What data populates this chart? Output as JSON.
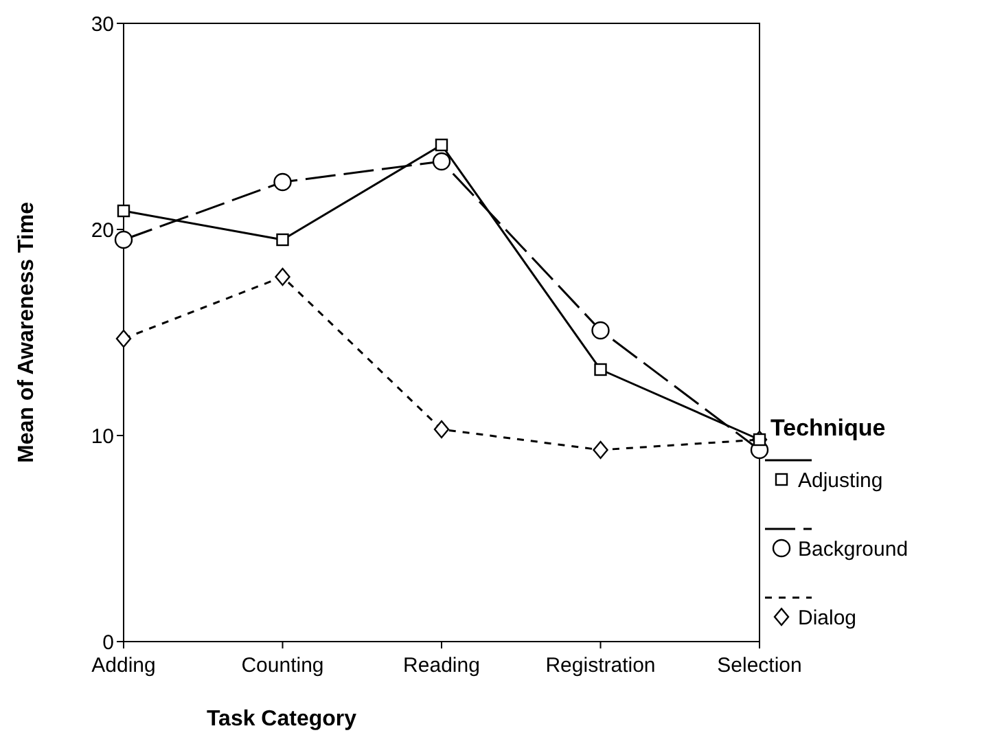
{
  "chart_data": {
    "type": "line",
    "xlabel": "Task Category",
    "ylabel": "Mean of Awareness Time",
    "legend_title": "Technique",
    "legend": "right",
    "grid": false,
    "categories": [
      "Adding",
      "Counting",
      "Reading",
      "Registration",
      "Selection"
    ],
    "ylim": [
      0,
      30
    ],
    "yticks": [
      0,
      10,
      20,
      30
    ],
    "series": [
      {
        "name": "Adjusting",
        "color": "#000000",
        "marker": "square",
        "line_style": "solid",
        "values": [
          20.9,
          19.5,
          24.1,
          13.2,
          9.8
        ]
      },
      {
        "name": "Background",
        "color": "#000000",
        "marker": "circle",
        "line_style": "dashed",
        "values": [
          19.5,
          22.3,
          23.3,
          15.1,
          9.3
        ]
      },
      {
        "name": "Dialog",
        "color": "#000000",
        "marker": "diamond",
        "line_style": "dotted",
        "values": [
          14.7,
          17.7,
          10.3,
          9.3,
          9.8
        ]
      }
    ]
  }
}
